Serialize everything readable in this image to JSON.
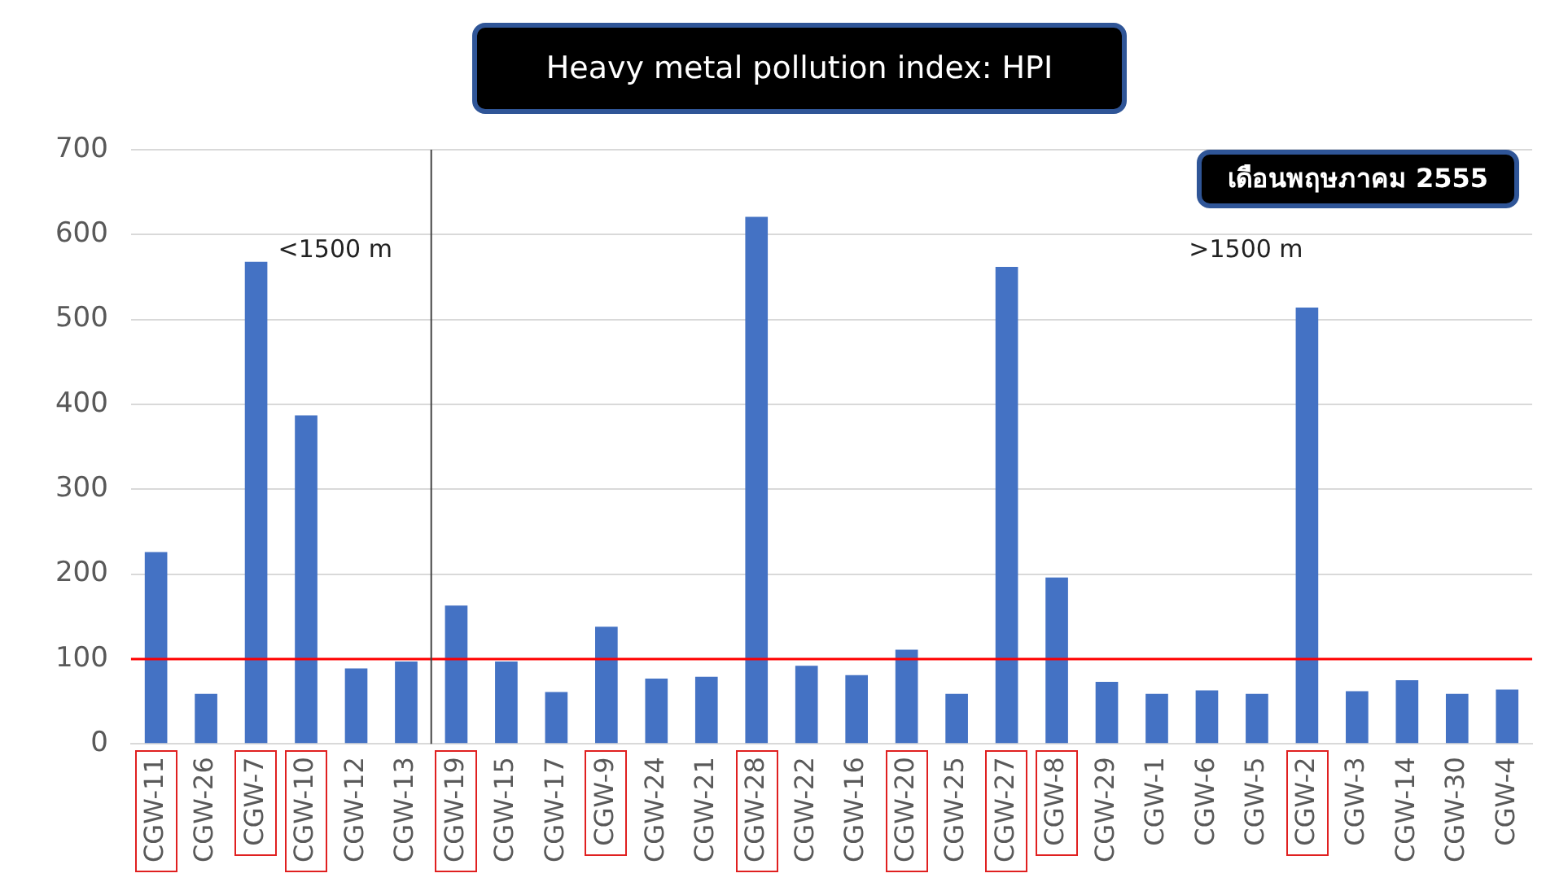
{
  "chart_data": {
    "type": "bar",
    "title": "Heavy metal pollution index: HPI",
    "subtitle": "เดือนพฤษภาคม 2555",
    "categories": [
      "CGW-11",
      "CGW-26",
      "CGW-7",
      "CGW-10",
      "CGW-12",
      "CGW-13",
      "CGW-19",
      "CGW-15",
      "CGW-17",
      "CGW-9",
      "CGW-24",
      "CGW-21",
      "CGW-28",
      "CGW-22",
      "CGW-16",
      "CGW-20",
      "CGW-25",
      "CGW-27",
      "CGW-8",
      "CGW-29",
      "CGW-1",
      "CGW-6",
      "CGW-5",
      "CGW-2",
      "CGW-3",
      "CGW-14",
      "CGW-30",
      "CGW-4"
    ],
    "values": [
      226,
      59,
      568,
      387,
      89,
      97,
      163,
      97,
      61,
      138,
      77,
      79,
      621,
      92,
      81,
      111,
      59,
      562,
      196,
      73,
      59,
      63,
      59,
      514,
      62,
      75,
      59,
      64
    ],
    "color": "#4472c4",
    "ylim": [
      0,
      700
    ],
    "yticks": [
      0,
      100,
      200,
      300,
      400,
      500,
      600,
      700
    ],
    "grid": "y",
    "ref_lines": [
      {
        "axis": "y",
        "value": 100,
        "color": "#ff0000"
      },
      {
        "axis": "x",
        "value": "CGW-19",
        "color": "#444444"
      }
    ],
    "annotations": [
      "<1500 m",
      ">1500 m"
    ]
  }
}
